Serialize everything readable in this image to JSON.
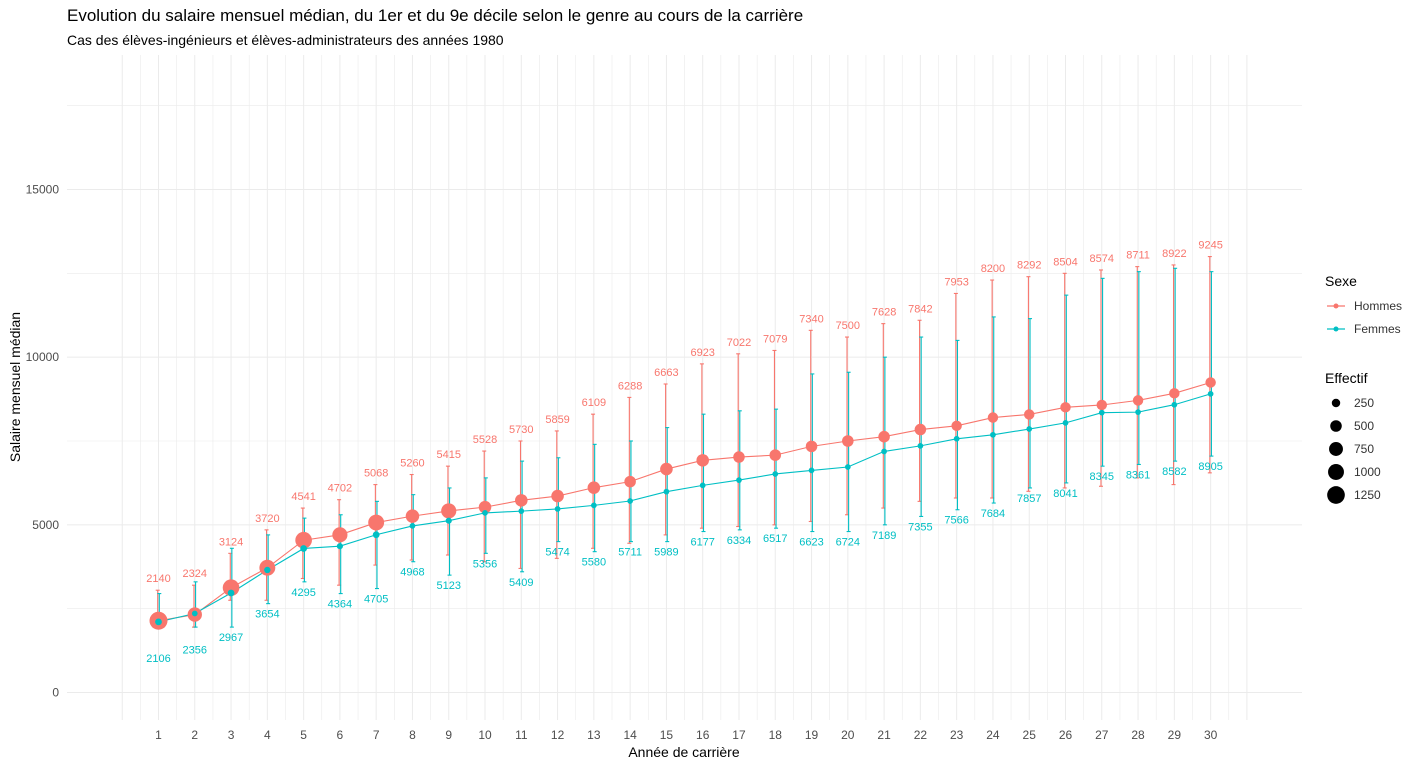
{
  "title": "Evolution du salaire mensuel médian, du 1er et du 9e décile selon le genre au cours de la carrière",
  "subtitle": "Cas des élèves-ingénieurs et élèves-administrateurs des années 1980",
  "legend": {
    "color_title": "Sexe",
    "size_title": "Effectif",
    "size_labels": [
      "250",
      "500",
      "750",
      "1000",
      "1250"
    ]
  },
  "chart_data": {
    "type": "line",
    "xlabel": "Année de carrière",
    "ylabel": "Salaire mensuel médian",
    "ylim": [
      -800,
      18000
    ],
    "y_ticks": [
      0,
      5000,
      10000,
      15000
    ],
    "grid": true,
    "legend_position": "right",
    "x": [
      1,
      2,
      3,
      4,
      5,
      6,
      7,
      8,
      9,
      10,
      11,
      12,
      13,
      14,
      15,
      16,
      17,
      18,
      19,
      20,
      21,
      22,
      23,
      24,
      25,
      26,
      27,
      28,
      29,
      30
    ],
    "series": [
      {
        "name": "Hommes",
        "color": "#F8766D",
        "median": [
          2140,
          2324,
          3124,
          3720,
          4541,
          4702,
          5068,
          5260,
          5415,
          5528,
          5730,
          5859,
          6109,
          6288,
          6663,
          6923,
          7022,
          7079,
          7340,
          7500,
          7628,
          7842,
          7953,
          8200,
          8292,
          8504,
          8574,
          8711,
          8922,
          9245
        ],
        "d1": [
          2050,
          1950,
          2750,
          2750,
          3400,
          3200,
          3800,
          3950,
          4100,
          3900,
          3700,
          4000,
          4300,
          4450,
          4700,
          4900,
          4950,
          5000,
          5100,
          5300,
          5500,
          5700,
          5800,
          5800,
          6000,
          6100,
          6150,
          6400,
          6200,
          6550
        ],
        "d9": [
          3050,
          3200,
          4150,
          4850,
          5500,
          5750,
          6200,
          6500,
          6750,
          7200,
          7500,
          7800,
          8300,
          8800,
          9200,
          9800,
          10100,
          10200,
          10800,
          10600,
          11000,
          11100,
          11900,
          12300,
          12400,
          12500,
          12600,
          12700,
          12750,
          13000
        ],
        "effectif": [
          1300,
          800,
          1100,
          1000,
          1100,
          900,
          1000,
          700,
          900,
          600,
          600,
          600,
          600,
          500,
          600,
          600,
          500,
          500,
          500,
          500,
          500,
          500,
          400,
          400,
          400,
          400,
          400,
          400,
          400,
          400
        ]
      },
      {
        "name": "Femmes",
        "color": "#00BFC4",
        "median": [
          2106,
          2356,
          2967,
          3654,
          4295,
          4364,
          4705,
          4968,
          5123,
          5356,
          5409,
          5474,
          5580,
          5711,
          5989,
          6177,
          6334,
          6517,
          6623,
          6724,
          7189,
          7355,
          7566,
          7684,
          7857,
          8041,
          8345,
          8361,
          8582,
          8905
        ],
        "d1": [
          1950,
          1950,
          1950,
          2650,
          3300,
          2950,
          3100,
          3900,
          3500,
          4150,
          3600,
          4500,
          4200,
          4500,
          4500,
          4800,
          4850,
          4900,
          4800,
          4800,
          5000,
          5250,
          5450,
          5650,
          6100,
          6250,
          6750,
          6800,
          6900,
          7050
        ],
        "d9": [
          2950,
          3300,
          4300,
          4700,
          5200,
          5300,
          5700,
          5900,
          6100,
          6400,
          6900,
          7000,
          7400,
          7500,
          7900,
          8300,
          8400,
          8450,
          9500,
          9550,
          10000,
          10600,
          10500,
          11200,
          11150,
          11850,
          12350,
          12550,
          12650,
          12550
        ],
        "effectif": [
          150,
          100,
          150,
          130,
          150,
          120,
          150,
          100,
          120,
          100,
          100,
          100,
          100,
          100,
          100,
          100,
          100,
          100,
          100,
          100,
          100,
          100,
          100,
          100,
          100,
          100,
          100,
          100,
          100,
          100
        ]
      }
    ]
  }
}
